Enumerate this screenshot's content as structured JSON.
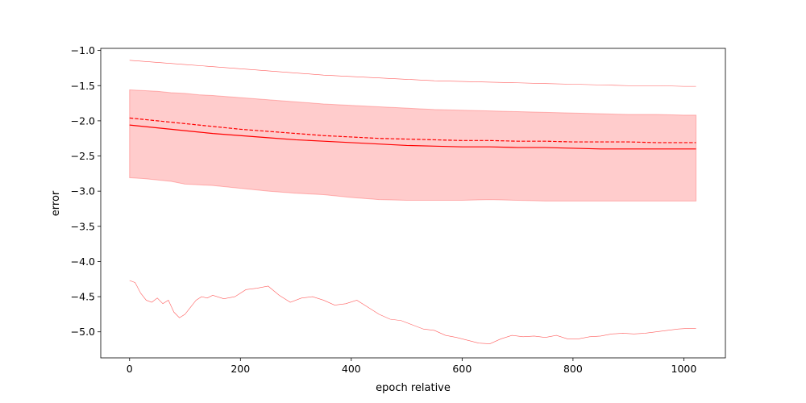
{
  "chart_data": {
    "type": "line",
    "title": "",
    "xlabel": "epoch relative",
    "ylabel": "error",
    "xlim": [
      -52,
      1075
    ],
    "ylim": [
      -5.37,
      -0.97
    ],
    "grid": false,
    "xticks": [
      0,
      200,
      400,
      600,
      800,
      1000
    ],
    "yticks": [
      -1.0,
      -1.5,
      -2.0,
      -2.5,
      -3.0,
      -3.5,
      -4.0,
      -4.5,
      -5.0
    ],
    "xtick_labels": [
      "0",
      "200",
      "400",
      "600",
      "800",
      "1000"
    ],
    "ytick_labels": [
      "−1.0",
      "−1.5",
      "−2.0",
      "−2.5",
      "−3.0",
      "−3.5",
      "−4.0",
      "−4.5",
      "−5.0"
    ],
    "colors": {
      "main": "#ff0000",
      "band": "#ff0000",
      "thin": "#ff4d4d"
    },
    "series": [
      {
        "role": "band",
        "x": [
          0,
          25,
          50,
          75,
          100,
          125,
          150,
          200,
          250,
          300,
          350,
          400,
          450,
          500,
          550,
          600,
          650,
          700,
          750,
          800,
          850,
          900,
          950,
          1000,
          1022
        ],
        "upper": [
          -1.56,
          -1.57,
          -1.58,
          -1.6,
          -1.61,
          -1.63,
          -1.64,
          -1.67,
          -1.7,
          -1.73,
          -1.76,
          -1.78,
          -1.8,
          -1.82,
          -1.84,
          -1.85,
          -1.86,
          -1.87,
          -1.88,
          -1.89,
          -1.9,
          -1.91,
          -1.91,
          -1.92,
          -1.92
        ],
        "lower": [
          -2.81,
          -2.82,
          -2.84,
          -2.86,
          -2.9,
          -2.91,
          -2.92,
          -2.96,
          -3.0,
          -3.03,
          -3.05,
          -3.09,
          -3.12,
          -3.13,
          -3.13,
          -3.13,
          -3.12,
          -3.13,
          -3.14,
          -3.14,
          -3.14,
          -3.14,
          -3.14,
          -3.14,
          -3.14
        ]
      },
      {
        "role": "mean",
        "style": "solid",
        "x": [
          0,
          25,
          50,
          75,
          100,
          125,
          150,
          200,
          250,
          300,
          350,
          400,
          450,
          500,
          550,
          600,
          650,
          700,
          750,
          800,
          850,
          900,
          950,
          1000,
          1022
        ],
        "values": [
          -2.06,
          -2.08,
          -2.1,
          -2.12,
          -2.14,
          -2.16,
          -2.18,
          -2.21,
          -2.24,
          -2.27,
          -2.29,
          -2.31,
          -2.33,
          -2.35,
          -2.36,
          -2.37,
          -2.37,
          -2.38,
          -2.38,
          -2.39,
          -2.4,
          -2.4,
          -2.4,
          -2.4,
          -2.4
        ]
      },
      {
        "role": "median",
        "style": "dashed",
        "x": [
          0,
          25,
          50,
          75,
          100,
          125,
          150,
          200,
          250,
          300,
          350,
          400,
          450,
          500,
          550,
          600,
          650,
          700,
          750,
          800,
          850,
          900,
          950,
          1000,
          1022
        ],
        "values": [
          -1.96,
          -1.98,
          -2.0,
          -2.02,
          -2.04,
          -2.06,
          -2.08,
          -2.12,
          -2.15,
          -2.18,
          -2.21,
          -2.23,
          -2.25,
          -2.26,
          -2.27,
          -2.28,
          -2.28,
          -2.29,
          -2.29,
          -2.3,
          -2.3,
          -2.3,
          -2.31,
          -2.31,
          -2.31
        ]
      },
      {
        "role": "max",
        "style": "thin",
        "x": [
          0,
          50,
          100,
          150,
          200,
          250,
          300,
          350,
          400,
          450,
          500,
          550,
          600,
          650,
          700,
          750,
          800,
          850,
          900,
          950,
          1000,
          1022
        ],
        "values": [
          -1.14,
          -1.17,
          -1.2,
          -1.23,
          -1.26,
          -1.29,
          -1.32,
          -1.35,
          -1.37,
          -1.39,
          -1.41,
          -1.43,
          -1.44,
          -1.45,
          -1.46,
          -1.47,
          -1.48,
          -1.49,
          -1.5,
          -1.5,
          -1.51,
          -1.51
        ]
      },
      {
        "role": "min",
        "style": "thin",
        "x": [
          0,
          10,
          20,
          30,
          40,
          50,
          60,
          70,
          80,
          90,
          100,
          110,
          120,
          130,
          140,
          150,
          170,
          190,
          210,
          230,
          250,
          270,
          290,
          310,
          330,
          350,
          370,
          390,
          410,
          430,
          450,
          470,
          490,
          510,
          530,
          550,
          570,
          590,
          610,
          630,
          650,
          670,
          690,
          710,
          730,
          750,
          770,
          790,
          810,
          830,
          850,
          870,
          890,
          910,
          930,
          950,
          970,
          990,
          1010,
          1022
        ],
        "values": [
          -4.27,
          -4.3,
          -4.45,
          -4.55,
          -4.58,
          -4.52,
          -4.6,
          -4.55,
          -4.72,
          -4.8,
          -4.75,
          -4.65,
          -4.55,
          -4.5,
          -4.52,
          -4.48,
          -4.53,
          -4.5,
          -4.4,
          -4.38,
          -4.35,
          -4.48,
          -4.58,
          -4.52,
          -4.5,
          -4.55,
          -4.62,
          -4.6,
          -4.55,
          -4.65,
          -4.75,
          -4.82,
          -4.84,
          -4.9,
          -4.96,
          -4.98,
          -5.05,
          -5.08,
          -5.12,
          -5.16,
          -5.17,
          -5.1,
          -5.05,
          -5.07,
          -5.06,
          -5.08,
          -5.05,
          -5.1,
          -5.1,
          -5.07,
          -5.06,
          -5.03,
          -5.02,
          -5.03,
          -5.02,
          -5.0,
          -4.98,
          -4.96,
          -4.95,
          -4.95
        ]
      }
    ]
  }
}
